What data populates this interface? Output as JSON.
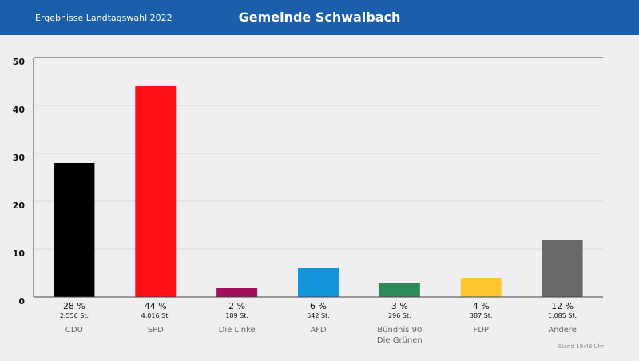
{
  "chart_data": {
    "type": "bar",
    "subtitle": "Ergebnisse Landtagswahl 2022",
    "title": "Gemeinde Schwalbach",
    "categories": [
      "CDU",
      "SPD",
      "Die Linke",
      "AFD",
      "Bündnis 90\nDie Grünen",
      "FDP",
      "Andere"
    ],
    "values": [
      28,
      44,
      2,
      6,
      3,
      4,
      12
    ],
    "value_labels": [
      "28 %",
      "44 %",
      "2 %",
      "6 %",
      "3 %",
      "4 %",
      "12 %"
    ],
    "vote_labels": [
      "2.556 St.",
      "4.016 St.",
      "189 St.",
      "542 St.",
      "296 St.",
      "387 St.",
      "1.085 St."
    ],
    "colors": [
      "#000000",
      "#fe1016",
      "#a0105c",
      "#1196dc",
      "#2e8b57",
      "#ffc62f",
      "#696969"
    ],
    "ylim": [
      0,
      50
    ],
    "yticks": [
      0,
      10,
      20,
      30,
      40,
      50
    ],
    "grid": true,
    "annotation": "Stand 19:48 Uhr"
  }
}
